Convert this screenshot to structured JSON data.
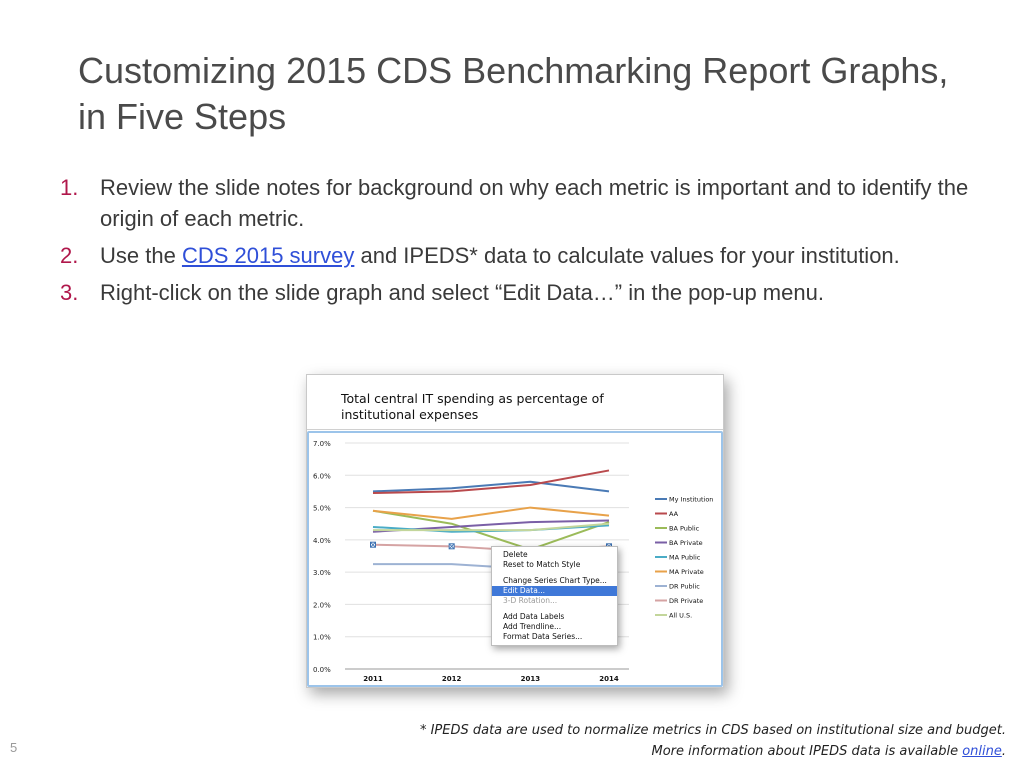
{
  "slide": {
    "title": "Customizing 2015 CDS Benchmarking Report Graphs, in Five Steps",
    "page_number": "5"
  },
  "steps": [
    {
      "number": "1.",
      "text_before": "Review the slide notes for background on why each metric is important and to identify the origin of each metric.",
      "link": "",
      "text_after": ""
    },
    {
      "number": "2.",
      "text_before": "Use the ",
      "link": "CDS 2015 survey",
      "text_after": " and IPEDS* data to calculate values for your institution."
    },
    {
      "number": "3.",
      "text_before": "Right-click on the slide graph and select “Edit Data…” in the pop-up menu.",
      "link": "",
      "text_after": ""
    }
  ],
  "footnote": {
    "line1": "* IPEDS data are used to normalize metrics in CDS based on institutional size and budget.",
    "line2_before": "More information about IPEDS data is available ",
    "line2_link": "online",
    "line2_after": "."
  },
  "context_menu": {
    "items": [
      {
        "label": "Delete",
        "state": "normal",
        "group": 1
      },
      {
        "label": "Reset to Match Style",
        "state": "normal",
        "group": 1
      },
      {
        "label": "Change Series Chart Type...",
        "state": "normal",
        "group": 2
      },
      {
        "label": "Edit Data...",
        "state": "selected",
        "group": 2
      },
      {
        "label": "3-D Rotation...",
        "state": "disabled",
        "group": 2
      },
      {
        "label": "Add Data Labels",
        "state": "normal",
        "group": 3
      },
      {
        "label": "Add Trendline...",
        "state": "normal",
        "group": 3
      },
      {
        "label": "Format Data Series...",
        "state": "normal",
        "group": 3
      }
    ]
  },
  "chart_data": {
    "type": "line",
    "title": "Total central IT spending as percentage of institutional expenses",
    "x": [
      "2011",
      "2012",
      "2013",
      "2014"
    ],
    "ylim": [
      0,
      7
    ],
    "yticks": [
      "0.0%",
      "1.0%",
      "2.0%",
      "3.0%",
      "4.0%",
      "5.0%",
      "6.0%",
      "7.0%"
    ],
    "grid": true,
    "legend_position": "right",
    "series": [
      {
        "name": "My Institution",
        "color": "#4a7ab5",
        "values": [
          5.5,
          5.6,
          5.8,
          5.5
        ]
      },
      {
        "name": "AA",
        "color": "#b94a4d",
        "values": [
          5.45,
          5.5,
          5.7,
          6.15
        ]
      },
      {
        "name": "BA Public",
        "color": "#9bbb59",
        "values": [
          4.9,
          4.5,
          3.7,
          4.55
        ]
      },
      {
        "name": "BA Private",
        "color": "#7a5fa6",
        "values": [
          4.25,
          4.4,
          4.55,
          4.6
        ]
      },
      {
        "name": "MA Public",
        "color": "#4aacc6",
        "values": [
          4.4,
          4.25,
          4.3,
          4.45
        ]
      },
      {
        "name": "MA Private",
        "color": "#e8a24a",
        "values": [
          4.9,
          4.65,
          5.0,
          4.75
        ]
      },
      {
        "name": "DR Public",
        "color": "#9db2d3",
        "values": [
          3.25,
          3.25,
          3.1,
          3.15
        ]
      },
      {
        "name": "DR Private",
        "color": "#d5a3a3",
        "values": [
          3.85,
          3.8,
          3.65,
          3.8
        ]
      },
      {
        "name": "All U.S.",
        "color": "#c3d69b",
        "values": [
          4.3,
          4.3,
          4.3,
          4.5
        ]
      }
    ],
    "selected_series": "DR Private"
  }
}
